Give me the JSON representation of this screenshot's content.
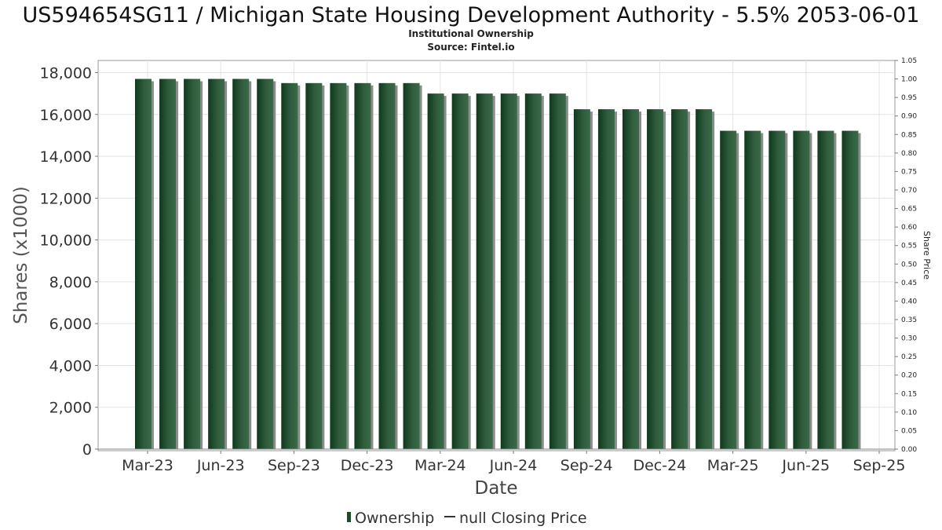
{
  "chart_data": {
    "type": "bar",
    "title": "US594654SG11 / Michigan State Housing Development Authority - 5.5% 2053-06-01",
    "subtitle_line1": "Institutional Ownership",
    "subtitle_line2": "Source: Fintel.io",
    "xlabel": "Date",
    "ylabel": "Shares (x1000)",
    "ylabel_right": "Share Price",
    "ylim": [
      0,
      18500
    ],
    "ylim_right": [
      0,
      1.05
    ],
    "yticks_left": [
      "0",
      "2,000",
      "4,000",
      "6,000",
      "8,000",
      "10,000",
      "12,000",
      "14,000",
      "16,000",
      "18,000"
    ],
    "yticks_right": [
      "0.00",
      "0.05",
      "0.10",
      "0.15",
      "0.20",
      "0.25",
      "0.30",
      "0.35",
      "0.40",
      "0.45",
      "0.50",
      "0.55",
      "0.60",
      "0.65",
      "0.70",
      "0.75",
      "0.80",
      "0.85",
      "0.90",
      "0.95",
      "1.00",
      "1.05"
    ],
    "xticks": [
      "Mar-23",
      "Jun-23",
      "Sep-23",
      "Dec-23",
      "Mar-24",
      "Jun-24",
      "Sep-24",
      "Dec-24",
      "Mar-25",
      "Jun-25",
      "Sep-25"
    ],
    "grid": true,
    "legend_position": "bottom",
    "series": [
      {
        "name": "Ownership",
        "color": "#1e4a2a",
        "values": [
          17700,
          17700,
          17700,
          17700,
          17700,
          17700,
          17500,
          17500,
          17500,
          17500,
          17500,
          17500,
          17000,
          17000,
          17000,
          17000,
          17000,
          17000,
          16250,
          16250,
          16250,
          16250,
          16250,
          16250,
          15220,
          15220,
          15220,
          15220,
          15220,
          15220
        ]
      },
      {
        "name": "null Closing Price",
        "color": "#333333",
        "values": []
      }
    ]
  }
}
